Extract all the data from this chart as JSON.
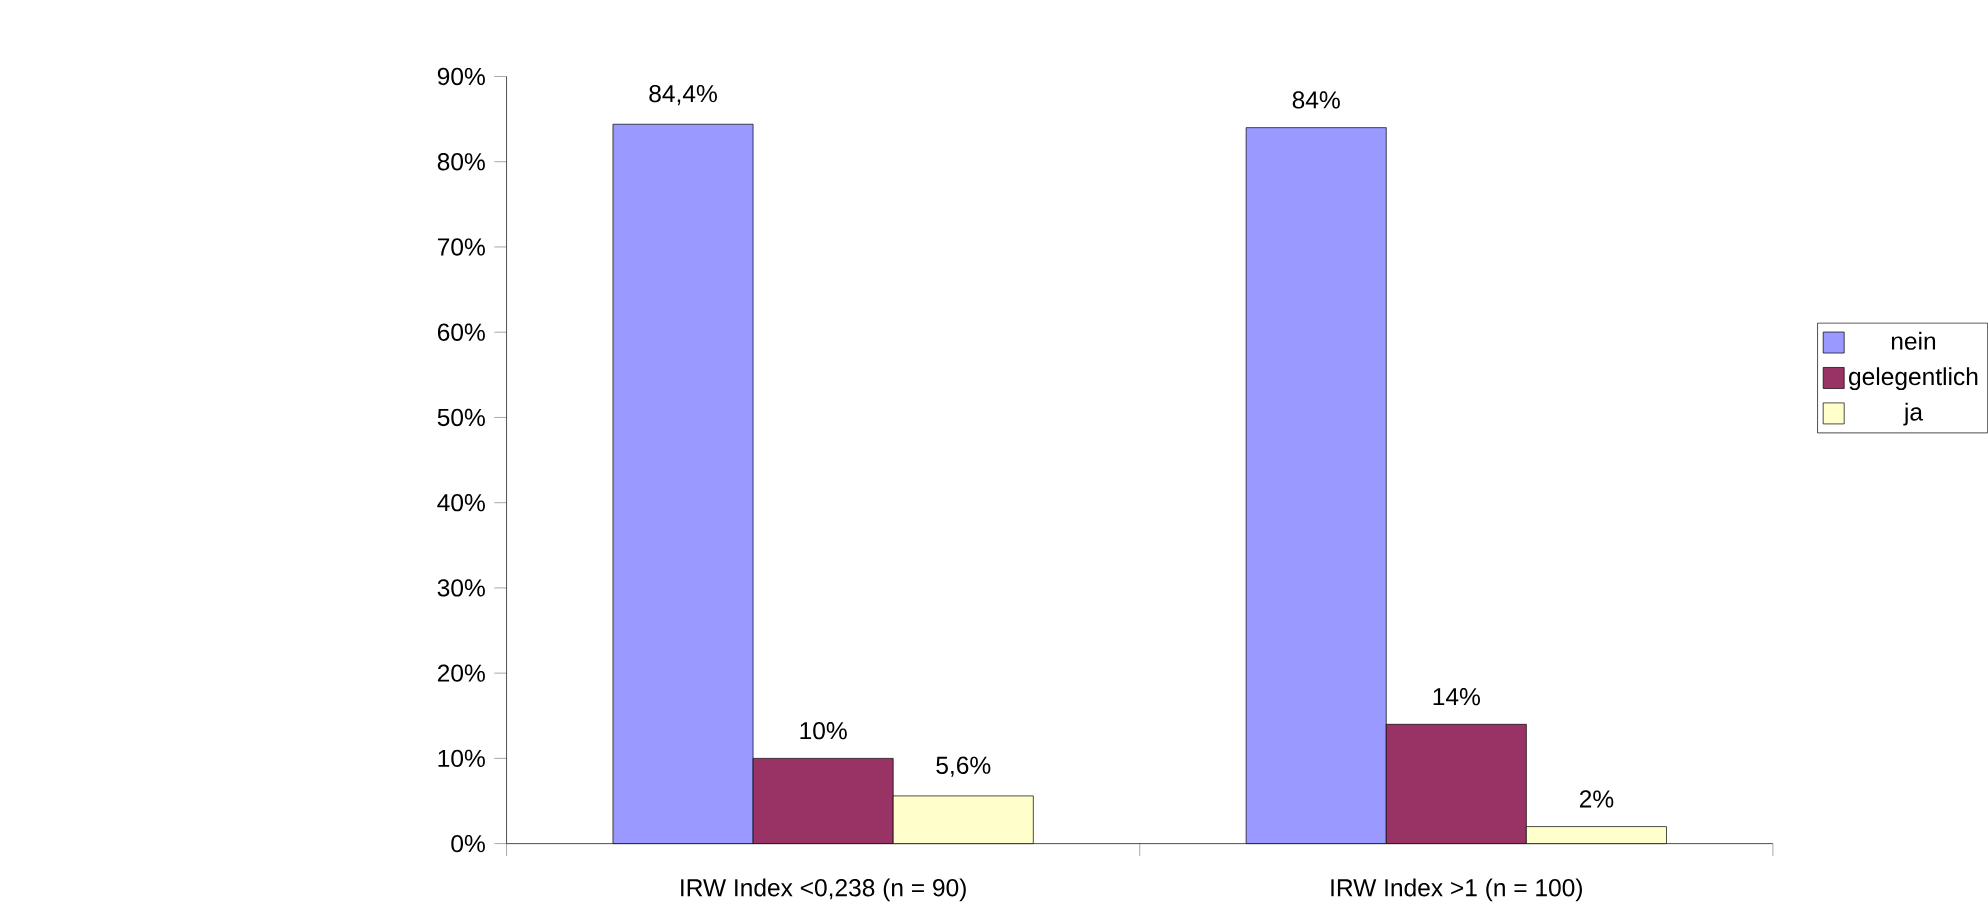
{
  "chart_data": {
    "type": "bar",
    "categories": [
      "IRW Index <0,238 (n = 90)",
      "IRW Index >1 (n = 100)"
    ],
    "series": [
      {
        "name": "nein",
        "color": "#9999ff",
        "values": [
          84.4,
          84
        ],
        "value_labels": [
          "84,4%",
          "84%"
        ]
      },
      {
        "name": "gelegentlich",
        "color": "#993366",
        "values": [
          10,
          14
        ],
        "value_labels": [
          "10%",
          "14%"
        ]
      },
      {
        "name": "ja",
        "color": "#ffffcc",
        "values": [
          5.6,
          2
        ],
        "value_labels": [
          "5,6%",
          "2%"
        ]
      }
    ],
    "ylim": [
      0,
      90
    ],
    "yticks": [
      {
        "value": 0,
        "label": "0%"
      },
      {
        "value": 10,
        "label": "10%"
      },
      {
        "value": 20,
        "label": "20%"
      },
      {
        "value": 30,
        "label": "30%"
      },
      {
        "value": 40,
        "label": "40%"
      },
      {
        "value": 50,
        "label": "50%"
      },
      {
        "value": 60,
        "label": "60%"
      },
      {
        "value": 70,
        "label": "70%"
      },
      {
        "value": 80,
        "label": "80%"
      },
      {
        "value": 90,
        "label": "90%"
      }
    ],
    "grid": false,
    "legend": "right"
  }
}
